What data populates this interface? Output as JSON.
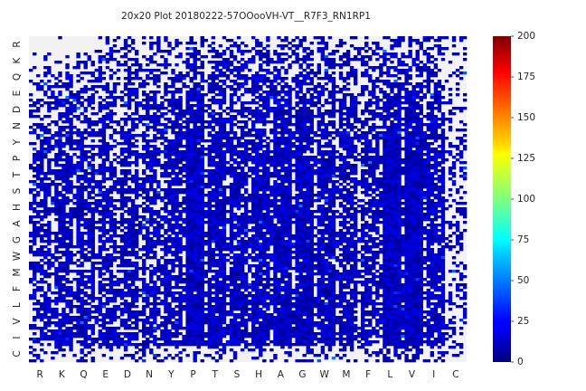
{
  "chart_data": {
    "type": "heatmap",
    "title": "20x20 Plot 20180222-57OOooVH-VT__R7F3_RN1RP1",
    "xlabel": "",
    "ylabel": "",
    "x_tick_labels": [
      "R",
      "K",
      "Q",
      "E",
      "D",
      "N",
      "Y",
      "P",
      "T",
      "S",
      "H",
      "A",
      "G",
      "W",
      "M",
      "F",
      "L",
      "V",
      "I",
      "C"
    ],
    "y_tick_labels": [
      "R",
      "K",
      "Q",
      "E",
      "D",
      "N",
      "Y",
      "P",
      "T",
      "S",
      "H",
      "A",
      "G",
      "W",
      "M",
      "F",
      "L",
      "V",
      "I",
      "C"
    ],
    "y_tick_order": "top-to-bottom",
    "cell_value_range": [
      0,
      200
    ],
    "typical_cell_values": [
      1,
      30
    ],
    "empty_cell_color": "#f2f2f2",
    "colormap": "jet",
    "colorbar": {
      "min": 0,
      "max": 200,
      "ticks": [
        0,
        25,
        50,
        75,
        100,
        125,
        150,
        175,
        200
      ],
      "placement": "right"
    },
    "grid": false
  }
}
